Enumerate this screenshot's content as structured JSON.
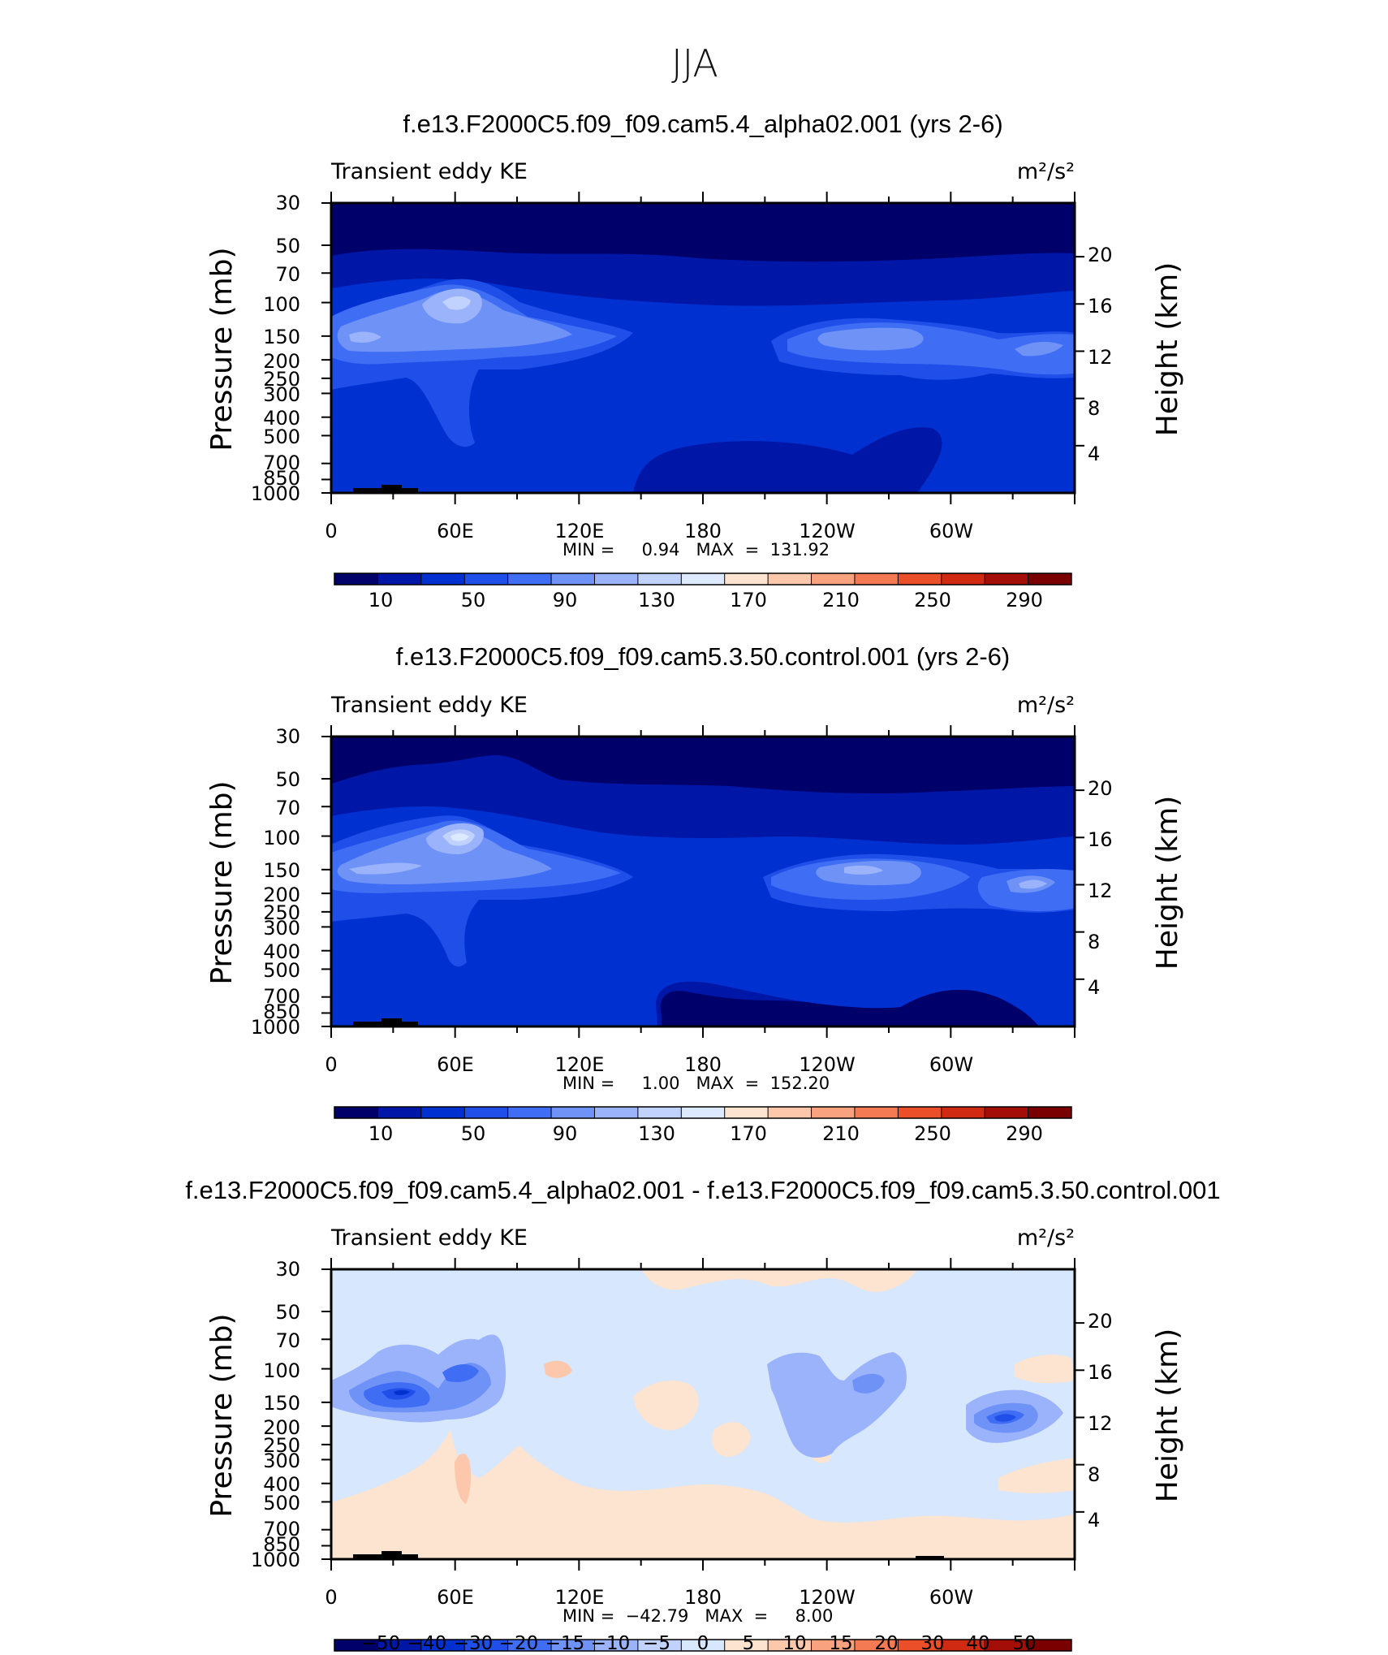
{
  "page_title": "JJA",
  "colors": {
    "seq_palette": [
      "#00006b",
      "#0016a6",
      "#0030d0",
      "#1f4fe8",
      "#3f6df3",
      "#6f92f7",
      "#9ab3fb",
      "#c0d2fd",
      "#dce9fe",
      "#fde4d0",
      "#fcc7aa",
      "#f8a27f",
      "#f47a54",
      "#ea4f2a",
      "#d02a12",
      "#a30f06",
      "#7a0000"
    ],
    "diff_palette": [
      "#00006b",
      "#0016a6",
      "#0030d0",
      "#1f4fe8",
      "#3f6df3",
      "#6f92f7",
      "#9ab3fb",
      "#c0d2fd",
      "#d6e7fe",
      "#fde4d0",
      "#fcc7aa",
      "#f8a27f",
      "#f47a54",
      "#ea4f2a",
      "#d02a12",
      "#a30f06",
      "#7a0000"
    ],
    "topo": "#000000"
  },
  "chart_data": [
    {
      "type": "contour",
      "title": "f.e13.F2000C5.f09_f09.cam5.4_alpha02.001 (yrs 2-6)",
      "left_label": "Transient eddy KE",
      "units_label": "m²/s²",
      "ylabel": "Pressure (mb)",
      "ylabel_right": "Height (km)",
      "y_ticks": [
        "30",
        "50",
        "70",
        "100",
        "150",
        "200",
        "250",
        "300",
        "400",
        "500",
        "700",
        "850",
        "1000"
      ],
      "y_ticks_right": [
        "20",
        "16",
        "12",
        "8",
        "4"
      ],
      "x_ticks": [
        "0",
        "60E",
        "120E",
        "180",
        "120W",
        "60W"
      ],
      "min_max_text": "MIN =     0.94   MAX  =  131.92",
      "colorbar_labels": [
        "10",
        "50",
        "90",
        "130",
        "170",
        "210",
        "250",
        "290"
      ],
      "levels": [
        10,
        30,
        50,
        70,
        90,
        110,
        130,
        150,
        170,
        190,
        210,
        230,
        250,
        270,
        290
      ],
      "min": 0.94,
      "max": 131.92
    },
    {
      "type": "contour",
      "title": "f.e13.F2000C5.f09_f09.cam5.3.50.control.001 (yrs 2-6)",
      "left_label": "Transient eddy KE",
      "units_label": "m²/s²",
      "ylabel": "Pressure (mb)",
      "ylabel_right": "Height (km)",
      "y_ticks": [
        "30",
        "50",
        "70",
        "100",
        "150",
        "200",
        "250",
        "300",
        "400",
        "500",
        "700",
        "850",
        "1000"
      ],
      "y_ticks_right": [
        "20",
        "16",
        "12",
        "8",
        "4"
      ],
      "x_ticks": [
        "0",
        "60E",
        "120E",
        "180",
        "120W",
        "60W"
      ],
      "min_max_text": "MIN =     1.00   MAX  =  152.20",
      "colorbar_labels": [
        "10",
        "50",
        "90",
        "130",
        "170",
        "210",
        "250",
        "290"
      ],
      "levels": [
        10,
        30,
        50,
        70,
        90,
        110,
        130,
        150,
        170,
        190,
        210,
        230,
        250,
        270,
        290
      ],
      "min": 1.0,
      "max": 152.2
    },
    {
      "type": "contour",
      "title": "f.e13.F2000C5.f09_f09.cam5.4_alpha02.001 - f.e13.F2000C5.f09_f09.cam5.3.50.control.001",
      "left_label": "Transient eddy KE",
      "units_label": "m²/s²",
      "ylabel": "Pressure (mb)",
      "ylabel_right": "Height (km)",
      "y_ticks": [
        "30",
        "50",
        "70",
        "100",
        "150",
        "200",
        "250",
        "300",
        "400",
        "500",
        "700",
        "850",
        "1000"
      ],
      "y_ticks_right": [
        "20",
        "16",
        "12",
        "8",
        "4"
      ],
      "x_ticks": [
        "0",
        "60E",
        "120E",
        "180",
        "120W",
        "60W"
      ],
      "min_max_text": "MIN =  −42.79   MAX  =     8.00",
      "colorbar_labels": [
        "−50",
        "−40",
        "−30",
        "−20",
        "−15",
        "−10",
        "−5",
        "0",
        "5",
        "10",
        "15",
        "20",
        "30",
        "40",
        "50"
      ],
      "levels": [
        -50,
        -40,
        -30,
        -20,
        -15,
        -10,
        -5,
        0,
        5,
        10,
        15,
        20,
        30,
        40,
        50
      ],
      "min": -42.79,
      "max": 8.0
    }
  ]
}
